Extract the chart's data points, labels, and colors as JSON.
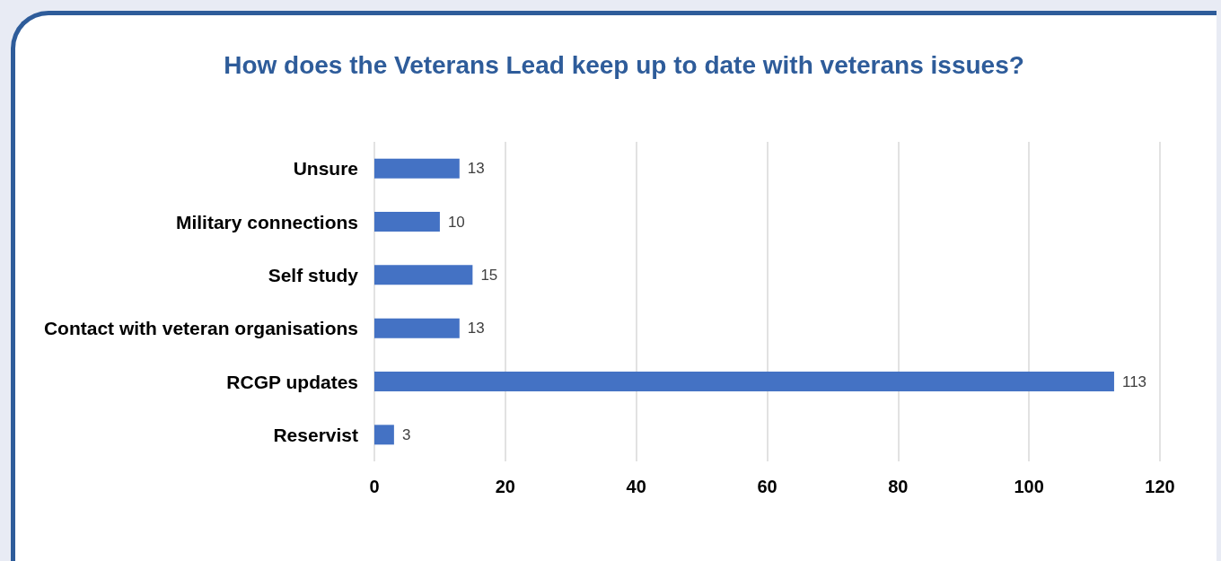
{
  "chart_data": {
    "type": "bar",
    "orientation": "horizontal",
    "title": "How does the Veterans Lead keep up to date with veterans issues?",
    "categories": [
      "Unsure",
      "Military connections",
      "Self study",
      "Contact with veteran organisations",
      "RCGP updates",
      "Reservist"
    ],
    "values": [
      13,
      10,
      15,
      13,
      113,
      3
    ],
    "color": "#4472c4",
    "xlim": [
      0,
      120
    ],
    "xticks": [
      0,
      20,
      40,
      60,
      80,
      100,
      120
    ],
    "grid": "x",
    "data_labels": true
  }
}
